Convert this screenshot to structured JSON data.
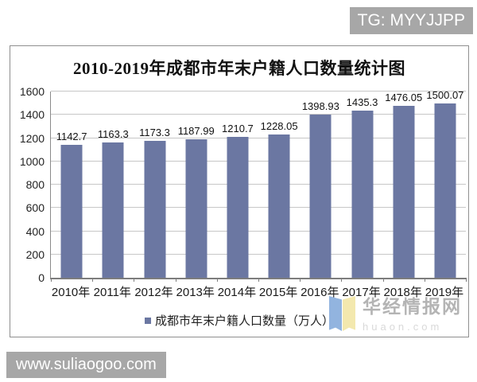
{
  "overlays": {
    "tg_badge": "TG: MYYJJPP",
    "site_badge": "www.suliaogoo.com",
    "watermark": {
      "name": "华经情报网",
      "domain": "huaon.com"
    }
  },
  "chart": {
    "title": "2010-2019年成都市年末户籍人口数量统计图",
    "legend_label": "成都市年末户籍人口数量（万人）"
  },
  "chart_data": {
    "type": "bar",
    "title": "2010-2019年成都市年末户籍人口数量统计图",
    "categories": [
      "2010年",
      "2011年",
      "2012年",
      "2013年",
      "2014年",
      "2015年",
      "2016年",
      "2017年",
      "2018年",
      "2019年"
    ],
    "values": [
      1142.7,
      1163.3,
      1173.3,
      1187.99,
      1210.7,
      1228.05,
      1398.93,
      1435.3,
      1476.05,
      1500.07
    ],
    "legend": [
      "成都市年末户籍人口数量（万人）"
    ],
    "xlabel": "",
    "ylabel": "",
    "ylim": [
      0,
      1600
    ],
    "yticks": [
      0,
      200,
      400,
      600,
      800,
      1000,
      1200,
      1400,
      1600
    ],
    "bar_color": "#6B77A2",
    "grid": true,
    "legend_position": "bottom"
  }
}
